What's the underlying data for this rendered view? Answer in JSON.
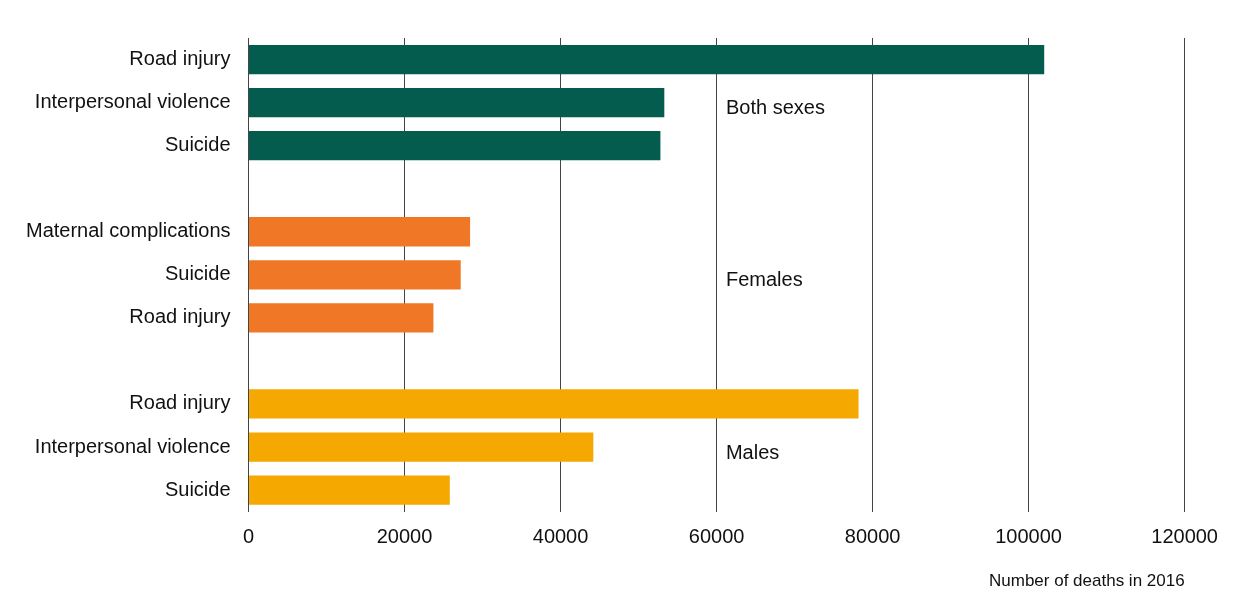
{
  "chart_data": {
    "type": "bar",
    "orientation": "horizontal",
    "xlabel": "Number of deaths in 2016",
    "categories": [
      "Road injury",
      "Interpersonal violence",
      "Suicide",
      null,
      "Maternal complications",
      "Suicide",
      "Road injury",
      null,
      "Road injury",
      "Interpersonal violence",
      "Suicide"
    ],
    "series": [
      {
        "name": "Both sexes",
        "color": "#035c4e",
        "values": [
          102000,
          53300,
          52800,
          null,
          null,
          null,
          null,
          null,
          null,
          null,
          null
        ]
      },
      {
        "name": "Females",
        "color": "#ef7726",
        "values": [
          null,
          null,
          null,
          null,
          28400,
          27200,
          23700,
          null,
          null,
          null,
          null
        ]
      },
      {
        "name": "Males",
        "color": "#f5a800",
        "values": [
          null,
          null,
          null,
          null,
          null,
          null,
          null,
          null,
          78200,
          44200,
          25800
        ]
      }
    ],
    "xlim": [
      0,
      120000
    ],
    "xticks": [
      0,
      20000,
      40000,
      60000,
      80000,
      100000,
      120000
    ],
    "grid": "x",
    "legend": false
  }
}
